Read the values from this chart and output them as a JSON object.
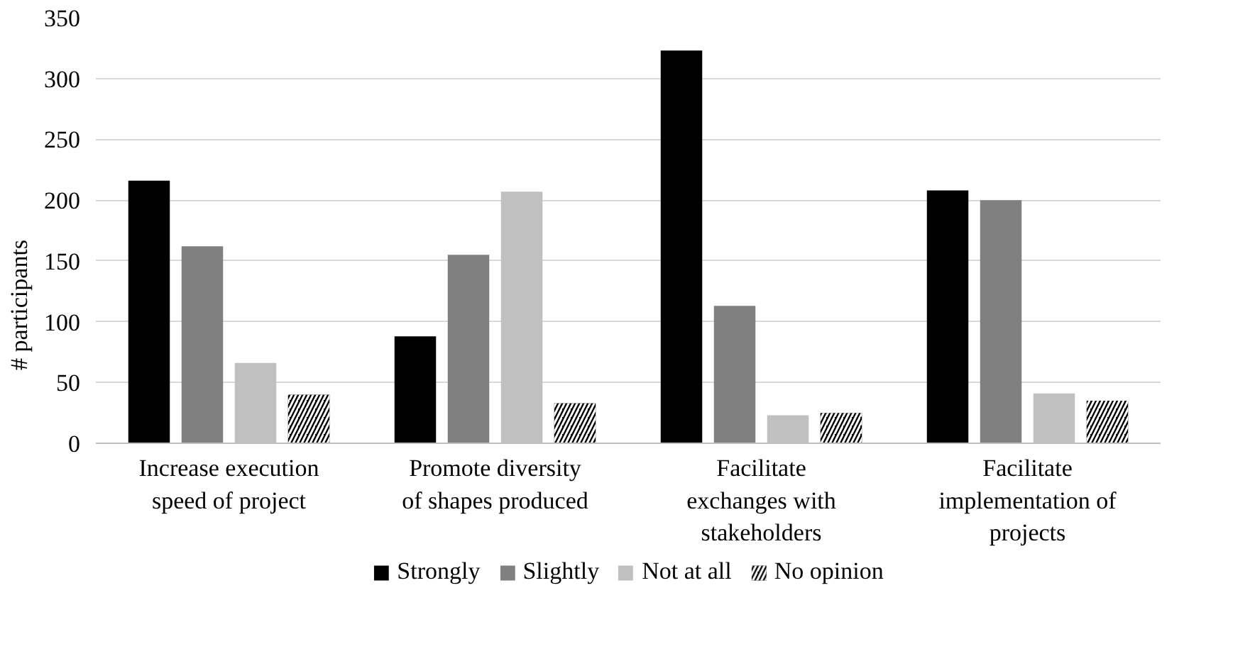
{
  "chart_data": {
    "type": "bar",
    "ylabel": "# participants",
    "categories": [
      "Increase execution speed of project",
      "Promote diversity of shapes produced",
      "Facilitate exchanges with stakeholders",
      "Facilitate implementation of projects"
    ],
    "series": [
      {
        "name": "Strongly",
        "color": "#000000",
        "values": [
          216,
          88,
          323,
          208
        ]
      },
      {
        "name": "Slightly",
        "color": "#808080",
        "values": [
          162,
          155,
          113,
          200
        ]
      },
      {
        "name": "Not at all",
        "color": "#c0c0c0",
        "values": [
          66,
          207,
          23,
          41
        ]
      },
      {
        "name": "No opinion",
        "color": "#000000",
        "values": [
          40,
          33,
          25,
          35
        ]
      }
    ],
    "ylim": [
      0,
      350
    ],
    "yticks": [
      0,
      50,
      100,
      150,
      200,
      250,
      300,
      350
    ],
    "grid": "y",
    "legend": "bottom"
  }
}
